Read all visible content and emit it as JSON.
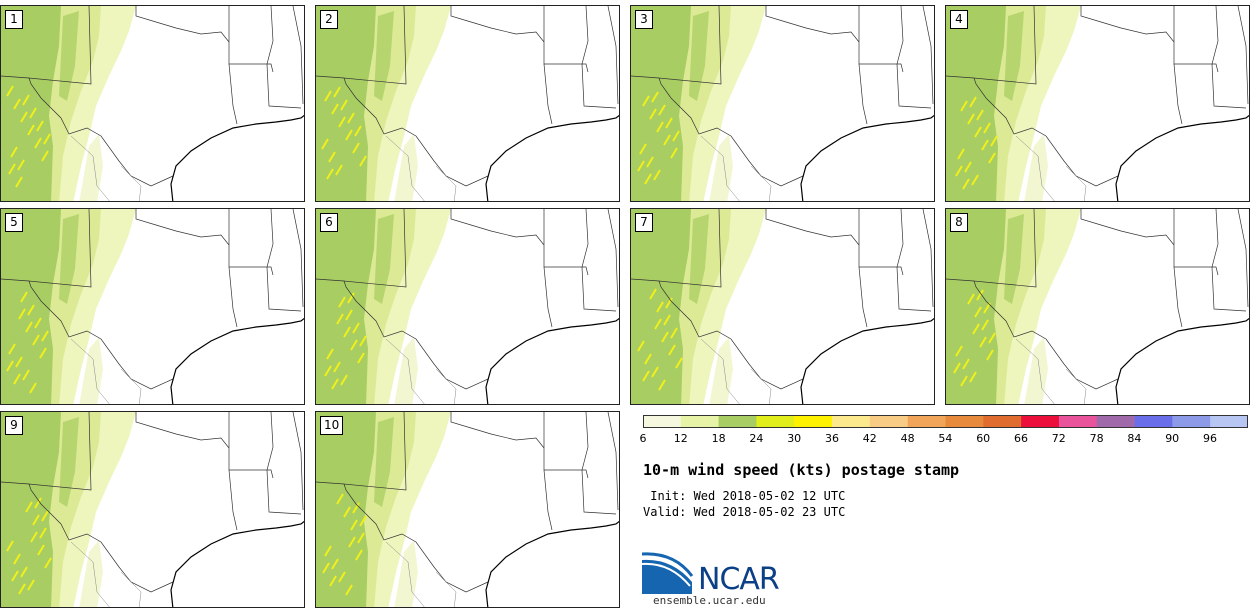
{
  "panels": [
    {
      "label": "1"
    },
    {
      "label": "2"
    },
    {
      "label": "3"
    },
    {
      "label": "4"
    },
    {
      "label": "5"
    },
    {
      "label": "6"
    },
    {
      "label": "7"
    },
    {
      "label": "8"
    },
    {
      "label": "9"
    },
    {
      "label": "10"
    }
  ],
  "colorbar": {
    "ticks": [
      "6",
      "12",
      "18",
      "24",
      "30",
      "36",
      "42",
      "48",
      "54",
      "60",
      "66",
      "72",
      "78",
      "84",
      "90",
      "96"
    ],
    "colors": [
      "#f5f7df",
      "#e7f3a6",
      "#a8cd63",
      "#e2ee1c",
      "#fff200",
      "#fde98d",
      "#f8cc85",
      "#f0a55a",
      "#e88a3c",
      "#e16c2f",
      "#ec0f3b",
      "#e8539b",
      "#a069a9",
      "#6a6ee8",
      "#8d9ae8",
      "#b8c6f4"
    ]
  },
  "title": "10-m wind speed (kts) postage stamp",
  "info": {
    "init": " Init: Wed 2018-05-02 12 UTC",
    "valid": "Valid: Wed 2018-05-02 23 UTC"
  },
  "logo": {
    "name": "NCAR",
    "url": "ensemble.ucar.edu"
  }
}
